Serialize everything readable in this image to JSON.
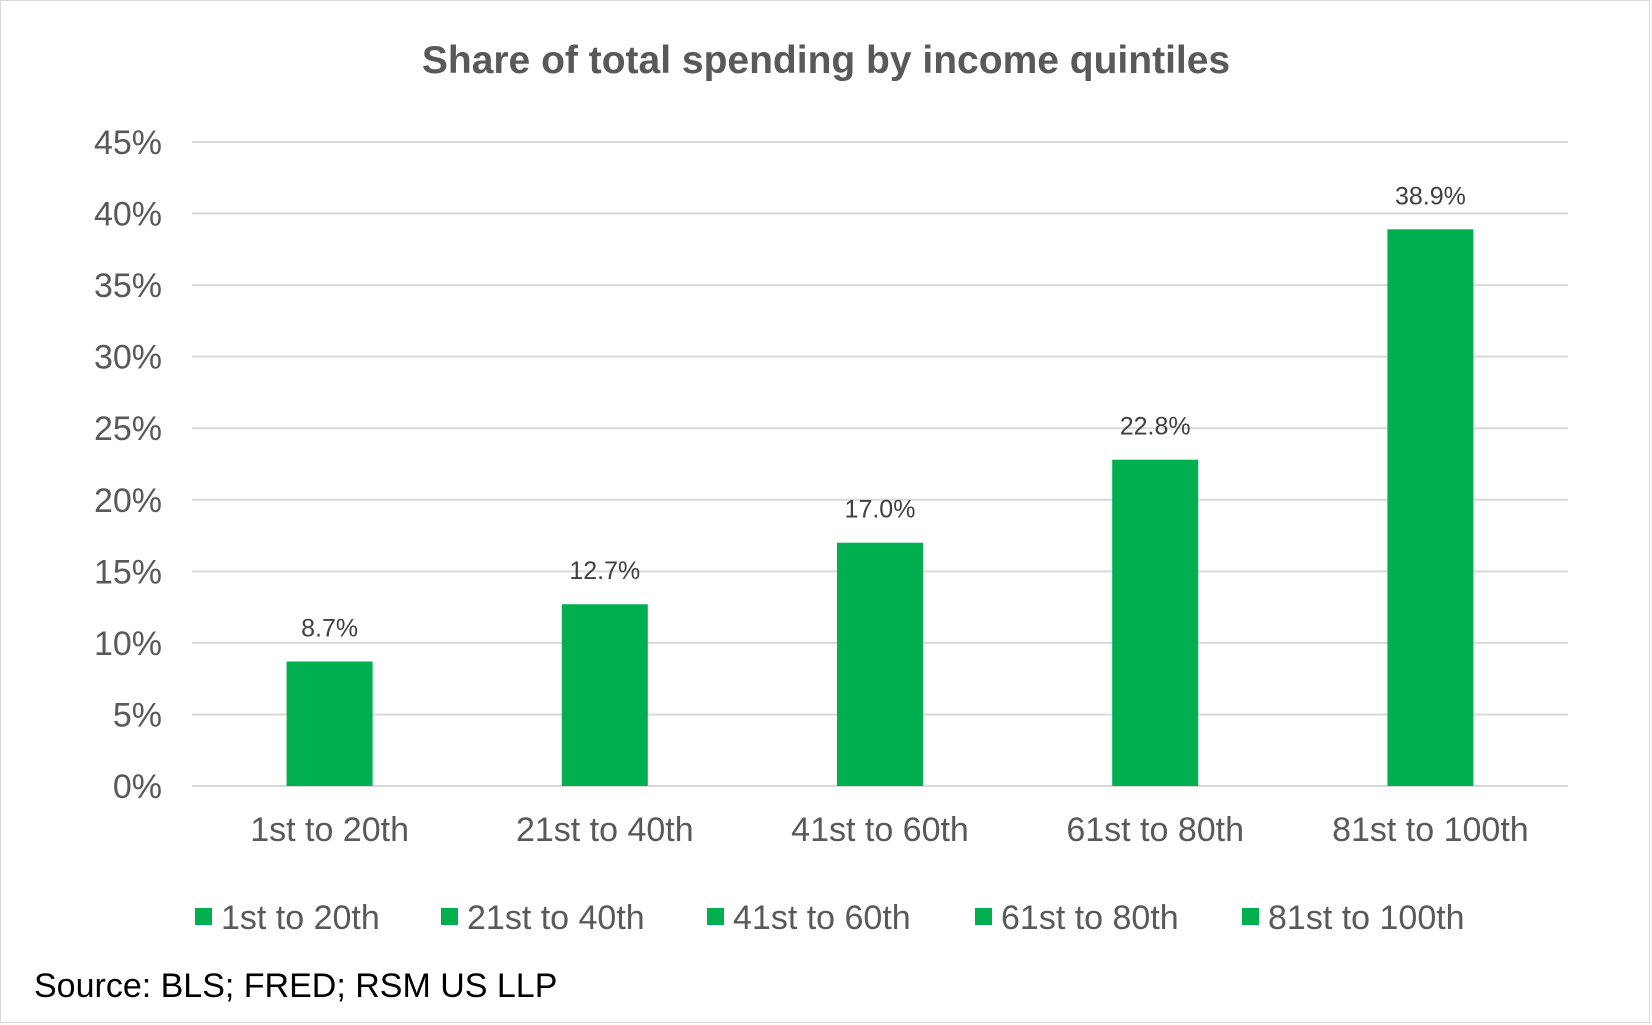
{
  "chart_data": {
    "type": "bar",
    "title": "Share of total spending by income quintiles",
    "categories": [
      "1st to 20th",
      "21st to 40th",
      "41st to 60th",
      "61st to 80th",
      "81st to 100th"
    ],
    "values": [
      8.7,
      12.7,
      17.0,
      22.8,
      38.9
    ],
    "data_labels": [
      "8.7%",
      "12.7%",
      "17.0%",
      "22.8%",
      "38.9%"
    ],
    "ylim": [
      0,
      45
    ],
    "yticks": [
      0,
      5,
      10,
      15,
      20,
      25,
      30,
      35,
      40,
      45
    ],
    "ytick_labels": [
      "0%",
      "5%",
      "10%",
      "15%",
      "20%",
      "25%",
      "30%",
      "35%",
      "40%",
      "45%"
    ],
    "xlabel": "",
    "ylabel": "",
    "grid": true,
    "legend": {
      "position": "bottom",
      "entries": [
        "1st to 20th",
        "21st to 40th",
        "41st to 60th",
        "61st to 80th",
        "81st to 100th"
      ]
    },
    "colors": {
      "bar": "#00b050",
      "grid": "#d9d9d9",
      "axis_text": "#595959",
      "label_text": "#404040"
    }
  },
  "source": "Source: BLS; FRED; RSM US LLP"
}
